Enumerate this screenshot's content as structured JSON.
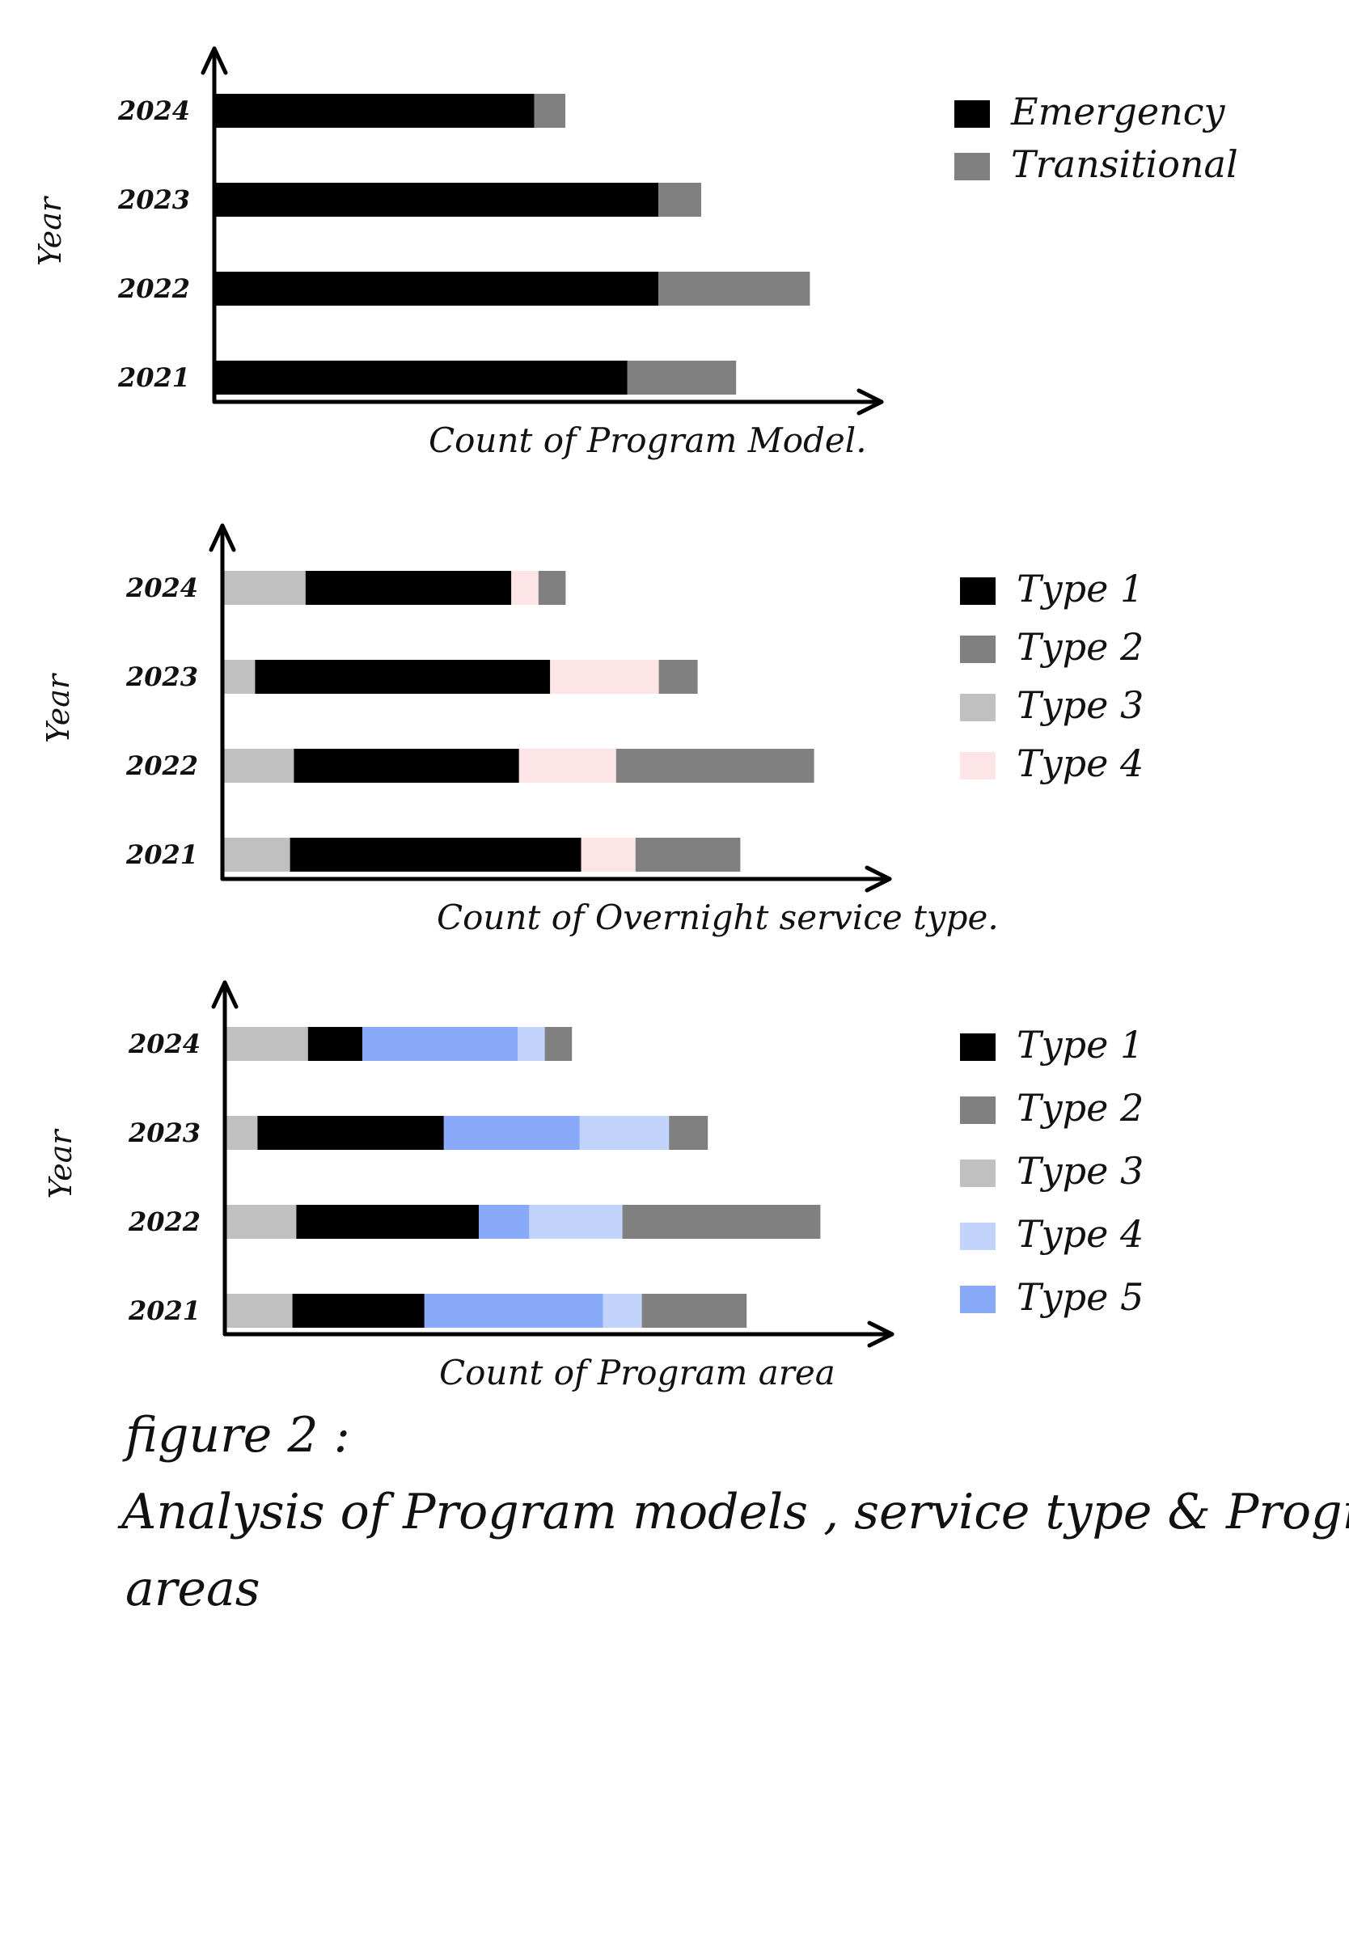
{
  "caption": {
    "line1": "figure 2 :",
    "line2": "Analysis of Program models , service type & Program",
    "line3": "areas"
  },
  "chart_data": [
    {
      "type": "bar",
      "orientation": "horizontal",
      "stacked": true,
      "ylabel": "Year",
      "xlabel": "Count of Program Model.",
      "categories": [
        "2024",
        "2023",
        "2022",
        "2021"
      ],
      "series": [
        {
          "name": "Emergency",
          "color": "#000000",
          "values": [
            41,
            57,
            57,
            53
          ]
        },
        {
          "name": "Transitional",
          "color": "#808080",
          "values": [
            4,
            5.5,
            19.5,
            14
          ]
        }
      ],
      "xlim": [
        0,
        80
      ],
      "legend": "top-right",
      "grid": false
    },
    {
      "type": "bar",
      "orientation": "horizontal",
      "stacked": true,
      "ylabel": "Year",
      "xlabel": "Count of Overnight service type.",
      "categories": [
        "2024",
        "2023",
        "2022",
        "2021"
      ],
      "series": [
        {
          "name": "Type 3",
          "color": "#c0c0c0",
          "values": [
            10.5,
            4,
            9,
            8.5
          ]
        },
        {
          "name": "Type 1",
          "color": "#000000",
          "values": [
            26.5,
            38,
            29,
            37.5
          ]
        },
        {
          "name": "Type 4",
          "color": "#fde4e6",
          "values": [
            3.5,
            14,
            12.5,
            7
          ]
        },
        {
          "name": "Type 2",
          "color": "#808080",
          "values": [
            3.5,
            5,
            25.5,
            13.5
          ]
        }
      ],
      "legend_order": [
        "Type 1",
        "Type 2",
        "Type 3",
        "Type 4"
      ],
      "xlim": [
        0,
        80
      ],
      "legend": "top-right",
      "grid": false
    },
    {
      "type": "bar",
      "orientation": "horizontal",
      "stacked": true,
      "ylabel": "Year",
      "xlabel": "Count of Program area",
      "categories": [
        "2024",
        "2023",
        "2022",
        "2021"
      ],
      "series": [
        {
          "name": "Type 3",
          "color": "#c0c0c0",
          "values": [
            10.5,
            4,
            9,
            8.5
          ]
        },
        {
          "name": "Type 1",
          "color": "#000000",
          "values": [
            7,
            24,
            23.5,
            17
          ]
        },
        {
          "name": "Type 5",
          "color": "#88aaf8",
          "values": [
            20,
            17.5,
            6.5,
            23
          ]
        },
        {
          "name": "Type 4",
          "color": "#c2d3fc",
          "values": [
            3.5,
            11.5,
            12,
            5
          ]
        },
        {
          "name": "Type 2",
          "color": "#808080",
          "values": [
            3.5,
            5,
            25.5,
            13.5
          ]
        }
      ],
      "legend_order": [
        "Type 1",
        "Type 2",
        "Type 3",
        "Type 4",
        "Type 5"
      ],
      "xlim": [
        0,
        80
      ],
      "legend": "top-right",
      "grid": false
    }
  ]
}
